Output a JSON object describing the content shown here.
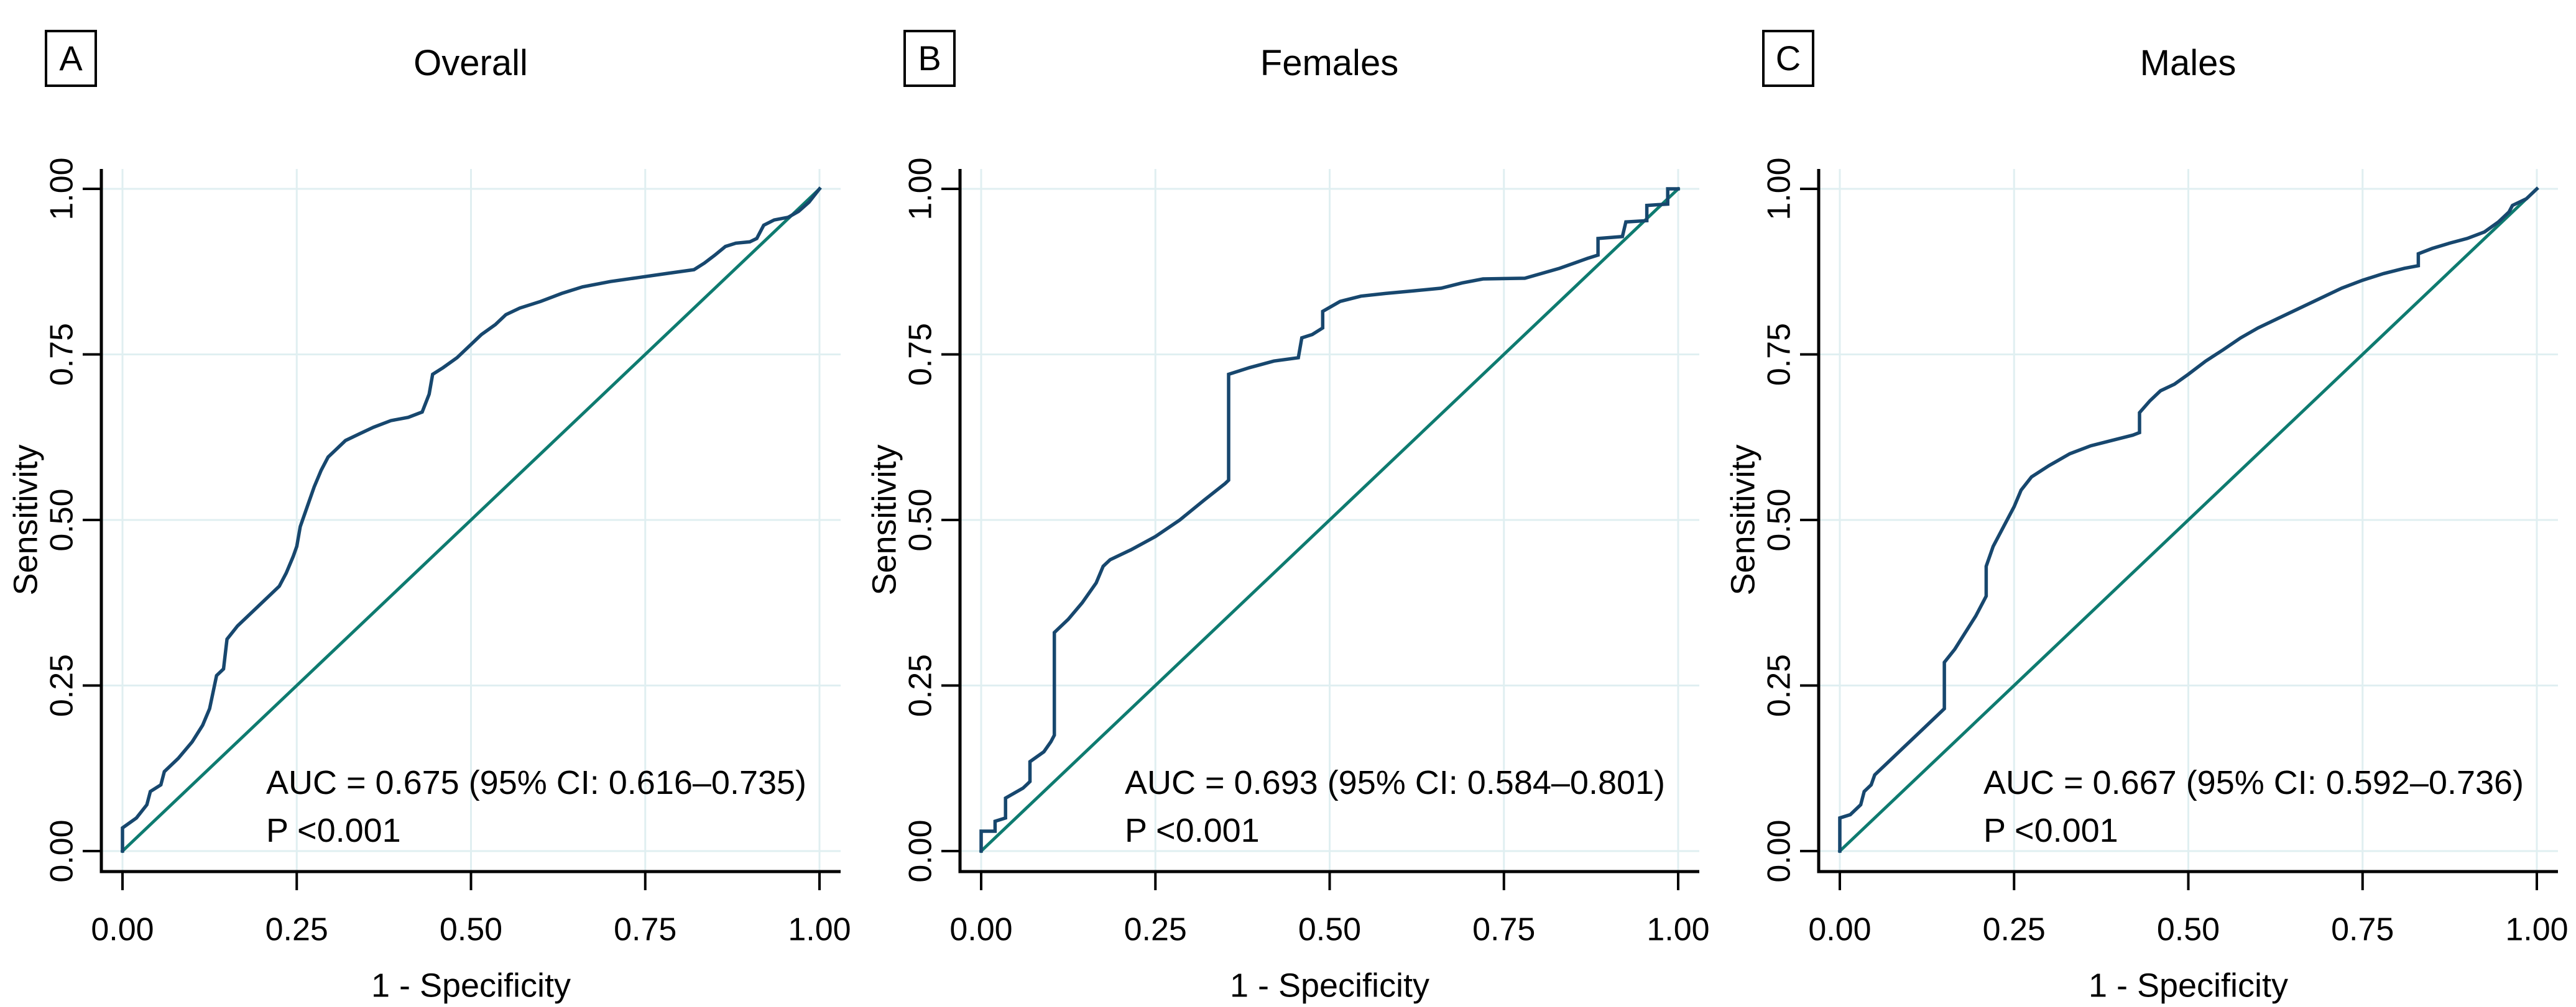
{
  "figure": {
    "kind": "roc-curves-figure",
    "background": "#ffffff"
  },
  "colors": {
    "roc_curve": "#17476e",
    "reference_line": "#0e7b70",
    "gridline": "#e0eff1",
    "axis": "#000000",
    "text": "#000000"
  },
  "chart_data": [
    {
      "type": "line",
      "panel_letter": "A",
      "title": "Overall",
      "xlabel": "1 - Specificity",
      "ylabel": "Sensitivity",
      "xlim": [
        0,
        1
      ],
      "ylim": [
        0,
        1
      ],
      "tick_values": [
        0,
        0.25,
        0.5,
        0.75,
        1
      ],
      "x_tick_labels": [
        "0.00",
        "0.25",
        "0.50",
        "0.75",
        "1.00"
      ],
      "y_tick_labels": [
        "0.00",
        "0.25",
        "0.50",
        "0.75",
        "1.00"
      ],
      "grid": true,
      "annotation": {
        "auc_text": "AUC = 0.675 (95% CI: 0.616–0.735)",
        "p_text": "P <0.001"
      },
      "series": [
        {
          "name": "ROC curve",
          "color_key": "roc_curve",
          "points": [
            [
              0,
              0
            ],
            [
              0,
              0.035
            ],
            [
              0.02,
              0.05
            ],
            [
              0.035,
              0.07
            ],
            [
              0.04,
              0.09
            ],
            [
              0.055,
              0.1
            ],
            [
              0.06,
              0.12
            ],
            [
              0.08,
              0.14
            ],
            [
              0.1,
              0.165
            ],
            [
              0.115,
              0.19
            ],
            [
              0.125,
              0.215
            ],
            [
              0.13,
              0.24
            ],
            [
              0.135,
              0.265
            ],
            [
              0.145,
              0.275
            ],
            [
              0.15,
              0.32
            ],
            [
              0.165,
              0.34
            ],
            [
              0.18,
              0.355
            ],
            [
              0.195,
              0.37
            ],
            [
              0.21,
              0.385
            ],
            [
              0.225,
              0.4
            ],
            [
              0.235,
              0.42
            ],
            [
              0.245,
              0.445
            ],
            [
              0.25,
              0.46
            ],
            [
              0.255,
              0.49
            ],
            [
              0.265,
              0.52
            ],
            [
              0.275,
              0.55
            ],
            [
              0.285,
              0.575
            ],
            [
              0.295,
              0.595
            ],
            [
              0.305,
              0.605
            ],
            [
              0.32,
              0.62
            ],
            [
              0.34,
              0.63
            ],
            [
              0.36,
              0.64
            ],
            [
              0.385,
              0.65
            ],
            [
              0.41,
              0.655
            ],
            [
              0.43,
              0.663
            ],
            [
              0.44,
              0.69
            ],
            [
              0.445,
              0.72
            ],
            [
              0.46,
              0.73
            ],
            [
              0.48,
              0.745
            ],
            [
              0.5,
              0.765
            ],
            [
              0.515,
              0.78
            ],
            [
              0.535,
              0.795
            ],
            [
              0.55,
              0.81
            ],
            [
              0.57,
              0.82
            ],
            [
              0.6,
              0.83
            ],
            [
              0.63,
              0.842
            ],
            [
              0.66,
              0.852
            ],
            [
              0.7,
              0.86
            ],
            [
              0.74,
              0.866
            ],
            [
              0.78,
              0.872
            ],
            [
              0.82,
              0.878
            ],
            [
              0.835,
              0.888
            ],
            [
              0.85,
              0.9
            ],
            [
              0.865,
              0.913
            ],
            [
              0.88,
              0.918
            ],
            [
              0.9,
              0.92
            ],
            [
              0.91,
              0.925
            ],
            [
              0.92,
              0.945
            ],
            [
              0.935,
              0.953
            ],
            [
              0.955,
              0.957
            ],
            [
              0.97,
              0.966
            ],
            [
              0.985,
              0.98
            ],
            [
              1,
              1
            ]
          ]
        },
        {
          "name": "Reference diagonal",
          "color_key": "reference_line",
          "points": [
            [
              0,
              0
            ],
            [
              1,
              1
            ]
          ]
        }
      ]
    },
    {
      "type": "line",
      "panel_letter": "B",
      "title": "Females",
      "xlabel": "1 - Specificity",
      "ylabel": "Sensitivity",
      "xlim": [
        0,
        1
      ],
      "ylim": [
        0,
        1
      ],
      "tick_values": [
        0,
        0.25,
        0.5,
        0.75,
        1
      ],
      "x_tick_labels": [
        "0.00",
        "0.25",
        "0.50",
        "0.75",
        "1.00"
      ],
      "y_tick_labels": [
        "0.00",
        "0.25",
        "0.50",
        "0.75",
        "1.00"
      ],
      "grid": true,
      "annotation": {
        "auc_text": "AUC = 0.693 (95% CI: 0.584–0.801)",
        "p_text": "P <0.001"
      },
      "series": [
        {
          "name": "ROC curve",
          "color_key": "roc_curve",
          "points": [
            [
              0,
              0
            ],
            [
              0,
              0.03
            ],
            [
              0.02,
              0.03
            ],
            [
              0.02,
              0.045
            ],
            [
              0.035,
              0.05
            ],
            [
              0.035,
              0.08
            ],
            [
              0.06,
              0.095
            ],
            [
              0.07,
              0.105
            ],
            [
              0.07,
              0.135
            ],
            [
              0.09,
              0.15
            ],
            [
              0.1,
              0.165
            ],
            [
              0.105,
              0.175
            ],
            [
              0.105,
              0.33
            ],
            [
              0.125,
              0.35
            ],
            [
              0.145,
              0.375
            ],
            [
              0.165,
              0.405
            ],
            [
              0.175,
              0.43
            ],
            [
              0.185,
              0.44
            ],
            [
              0.215,
              0.455
            ],
            [
              0.25,
              0.475
            ],
            [
              0.285,
              0.5
            ],
            [
              0.32,
              0.53
            ],
            [
              0.35,
              0.555
            ],
            [
              0.355,
              0.56
            ],
            [
              0.355,
              0.72
            ],
            [
              0.385,
              0.73
            ],
            [
              0.42,
              0.74
            ],
            [
              0.455,
              0.745
            ],
            [
              0.46,
              0.775
            ],
            [
              0.475,
              0.78
            ],
            [
              0.49,
              0.79
            ],
            [
              0.49,
              0.815
            ],
            [
              0.515,
              0.83
            ],
            [
              0.545,
              0.838
            ],
            [
              0.58,
              0.842
            ],
            [
              0.62,
              0.846
            ],
            [
              0.66,
              0.85
            ],
            [
              0.69,
              0.858
            ],
            [
              0.72,
              0.864
            ],
            [
              0.78,
              0.865
            ],
            [
              0.83,
              0.88
            ],
            [
              0.87,
              0.895
            ],
            [
              0.885,
              0.9
            ],
            [
              0.885,
              0.925
            ],
            [
              0.92,
              0.928
            ],
            [
              0.925,
              0.95
            ],
            [
              0.955,
              0.952
            ],
            [
              0.955,
              0.975
            ],
            [
              0.985,
              0.977
            ],
            [
              0.985,
              1
            ],
            [
              1,
              1
            ]
          ]
        },
        {
          "name": "Reference diagonal",
          "color_key": "reference_line",
          "points": [
            [
              0,
              0
            ],
            [
              1,
              1
            ]
          ]
        }
      ]
    },
    {
      "type": "line",
      "panel_letter": "C",
      "title": "Males",
      "xlabel": "1 - Specificity",
      "ylabel": "Sensitivity",
      "xlim": [
        0,
        1
      ],
      "ylim": [
        0,
        1
      ],
      "tick_values": [
        0,
        0.25,
        0.5,
        0.75,
        1
      ],
      "x_tick_labels": [
        "0.00",
        "0.25",
        "0.50",
        "0.75",
        "1.00"
      ],
      "y_tick_labels": [
        "0.00",
        "0.25",
        "0.50",
        "0.75",
        "1.00"
      ],
      "grid": true,
      "annotation": {
        "auc_text": "AUC = 0.667 (95% CI: 0.592–0.736)",
        "p_text": "P <0.001"
      },
      "series": [
        {
          "name": "ROC curve",
          "color_key": "roc_curve",
          "points": [
            [
              0,
              0
            ],
            [
              0,
              0.05
            ],
            [
              0.015,
              0.055
            ],
            [
              0.03,
              0.07
            ],
            [
              0.035,
              0.09
            ],
            [
              0.045,
              0.1
            ],
            [
              0.05,
              0.115
            ],
            [
              0.07,
              0.135
            ],
            [
              0.09,
              0.155
            ],
            [
              0.11,
              0.175
            ],
            [
              0.125,
              0.19
            ],
            [
              0.14,
              0.205
            ],
            [
              0.15,
              0.215
            ],
            [
              0.15,
              0.285
            ],
            [
              0.165,
              0.305
            ],
            [
              0.18,
              0.33
            ],
            [
              0.195,
              0.355
            ],
            [
              0.205,
              0.375
            ],
            [
              0.21,
              0.385
            ],
            [
              0.21,
              0.43
            ],
            [
              0.22,
              0.46
            ],
            [
              0.235,
              0.49
            ],
            [
              0.25,
              0.52
            ],
            [
              0.26,
              0.545
            ],
            [
              0.275,
              0.565
            ],
            [
              0.3,
              0.582
            ],
            [
              0.33,
              0.6
            ],
            [
              0.36,
              0.612
            ],
            [
              0.39,
              0.62
            ],
            [
              0.42,
              0.628
            ],
            [
              0.43,
              0.632
            ],
            [
              0.43,
              0.662
            ],
            [
              0.445,
              0.68
            ],
            [
              0.46,
              0.695
            ],
            [
              0.48,
              0.705
            ],
            [
              0.5,
              0.72
            ],
            [
              0.525,
              0.74
            ],
            [
              0.55,
              0.757
            ],
            [
              0.575,
              0.775
            ],
            [
              0.6,
              0.79
            ],
            [
              0.63,
              0.805
            ],
            [
              0.66,
              0.82
            ],
            [
              0.69,
              0.835
            ],
            [
              0.72,
              0.85
            ],
            [
              0.75,
              0.862
            ],
            [
              0.78,
              0.872
            ],
            [
              0.81,
              0.88
            ],
            [
              0.83,
              0.884
            ],
            [
              0.83,
              0.902
            ],
            [
              0.85,
              0.91
            ],
            [
              0.875,
              0.918
            ],
            [
              0.9,
              0.925
            ],
            [
              0.925,
              0.935
            ],
            [
              0.945,
              0.95
            ],
            [
              0.96,
              0.965
            ],
            [
              0.965,
              0.975
            ],
            [
              0.985,
              0.985
            ],
            [
              1,
              1
            ]
          ]
        },
        {
          "name": "Reference diagonal",
          "color_key": "reference_line",
          "points": [
            [
              0,
              0
            ],
            [
              1,
              1
            ]
          ]
        }
      ]
    }
  ]
}
